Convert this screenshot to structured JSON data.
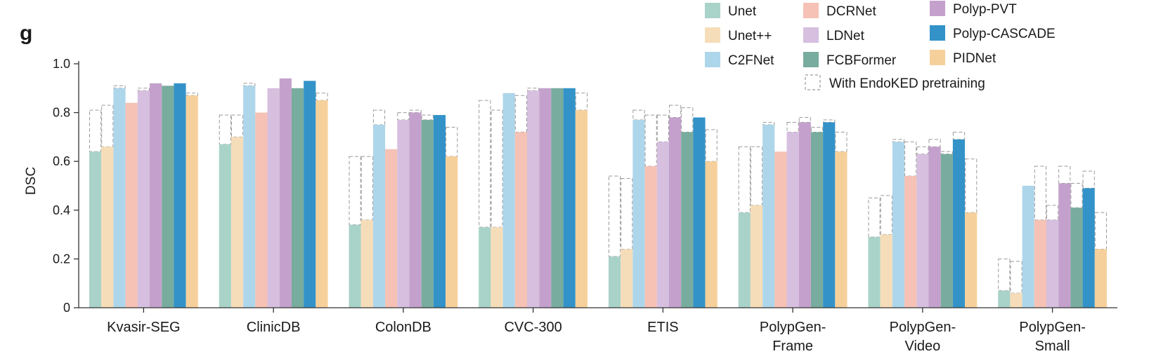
{
  "panel_label": "g",
  "chart_data": {
    "type": "bar",
    "ylabel": "DSC",
    "xlabel": "",
    "ylim": [
      0,
      1.0
    ],
    "yticks": [
      "0",
      "0.2",
      "0.4",
      "0.6",
      "0.8",
      "1.0"
    ],
    "grid": false,
    "legend_position": "top-right",
    "pretrain_legend_label": "With EndoKED pretraining",
    "categories": [
      [
        "Kvasir-SEG"
      ],
      [
        "ClinicDB"
      ],
      [
        "ColonDB"
      ],
      [
        "CVC-300"
      ],
      [
        "ETIS"
      ],
      [
        "PolypGen-",
        "Frame"
      ],
      [
        "PolypGen-",
        "Video"
      ],
      [
        "PolypGen-",
        "Small"
      ]
    ],
    "series": [
      {
        "name": "Unet",
        "color": "#a9d3c8",
        "values": [
          0.64,
          0.67,
          0.34,
          0.33,
          0.21,
          0.39,
          0.29,
          0.07
        ],
        "pretrain": [
          0.81,
          0.79,
          0.62,
          0.85,
          0.54,
          0.66,
          0.45,
          0.2
        ]
      },
      {
        "name": "Unet++",
        "color": "#f6ddb9",
        "values": [
          0.66,
          0.7,
          0.36,
          0.33,
          0.24,
          0.42,
          0.3,
          0.06
        ],
        "pretrain": [
          0.83,
          0.79,
          0.62,
          0.81,
          0.53,
          0.66,
          0.46,
          0.19
        ]
      },
      {
        "name": "C2FNet",
        "color": "#aed6ea",
        "values": [
          0.9,
          0.91,
          0.75,
          0.88,
          0.77,
          0.75,
          0.68,
          0.5
        ],
        "pretrain": [
          0.91,
          0.92,
          0.81,
          0.88,
          0.81,
          0.76,
          0.69,
          0.5
        ]
      },
      {
        "name": "DCRNet",
        "color": "#f5c2b5",
        "values": [
          0.84,
          0.8,
          0.65,
          0.72,
          0.58,
          0.64,
          0.54,
          0.36
        ],
        "pretrain": [
          0.84,
          0.8,
          0.65,
          0.87,
          0.79,
          0.64,
          0.68,
          0.58
        ]
      },
      {
        "name": "LDNet",
        "color": "#d6bfdf",
        "values": [
          0.89,
          0.9,
          0.77,
          0.89,
          0.68,
          0.72,
          0.63,
          0.36
        ],
        "pretrain": [
          0.9,
          0.9,
          0.8,
          0.9,
          0.79,
          0.76,
          0.66,
          0.42
        ]
      },
      {
        "name": "Polyp-PVT",
        "color": "#c4a1cc",
        "values": [
          0.92,
          0.94,
          0.8,
          0.9,
          0.78,
          0.76,
          0.66,
          0.51
        ],
        "pretrain": [
          0.92,
          0.94,
          0.81,
          0.9,
          0.83,
          0.78,
          0.69,
          0.58
        ]
      },
      {
        "name": "FCBFormer",
        "color": "#78ac9e",
        "values": [
          0.91,
          0.9,
          0.77,
          0.9,
          0.72,
          0.72,
          0.63,
          0.41
        ],
        "pretrain": [
          0.91,
          0.9,
          0.79,
          0.9,
          0.82,
          0.74,
          0.64,
          0.51
        ]
      },
      {
        "name": "Polyp-CASCADE",
        "color": "#3393c8",
        "values": [
          0.92,
          0.93,
          0.79,
          0.9,
          0.78,
          0.76,
          0.69,
          0.49
        ],
        "pretrain": [
          0.92,
          0.93,
          0.79,
          0.9,
          0.78,
          0.77,
          0.72,
          0.56
        ]
      },
      {
        "name": "PIDNet",
        "color": "#f6d09b",
        "values": [
          0.87,
          0.85,
          0.62,
          0.81,
          0.6,
          0.64,
          0.39,
          0.24
        ],
        "pretrain": [
          0.88,
          0.88,
          0.74,
          0.88,
          0.73,
          0.72,
          0.61,
          0.39
        ]
      }
    ]
  }
}
